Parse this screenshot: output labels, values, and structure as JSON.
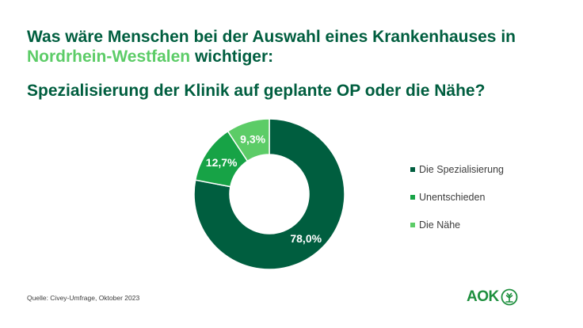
{
  "header": {
    "title_part1": "Was wäre Menschen bei der Auswahl eines Krankenhauses in ",
    "title_highlight": "Nordrhein-Westfalen",
    "title_part2": " wichtiger:",
    "subtitle": "Spezialisierung der Klinik auf geplante OP oder die Nähe?"
  },
  "chart_data": {
    "type": "pie",
    "donut": true,
    "categories": [
      "Die Spezialisierung",
      "Unentschieden",
      "Die Nähe"
    ],
    "values": [
      78.0,
      12.7,
      9.3
    ],
    "data_labels": [
      "78,0%",
      "12,7%",
      "9,3%"
    ],
    "colors": [
      "#005e3f",
      "#17a346",
      "#5ccc67"
    ],
    "legend_position": "right"
  },
  "footer": {
    "source": "Quelle: Civey-Umfrage,  Oktober 2023",
    "logo_text": "AOK",
    "logo_icon": "aok-tree-logo-icon"
  },
  "colors": {
    "title": "#005e3f",
    "highlight": "#5ccc67",
    "text": "#3d3d3d"
  }
}
